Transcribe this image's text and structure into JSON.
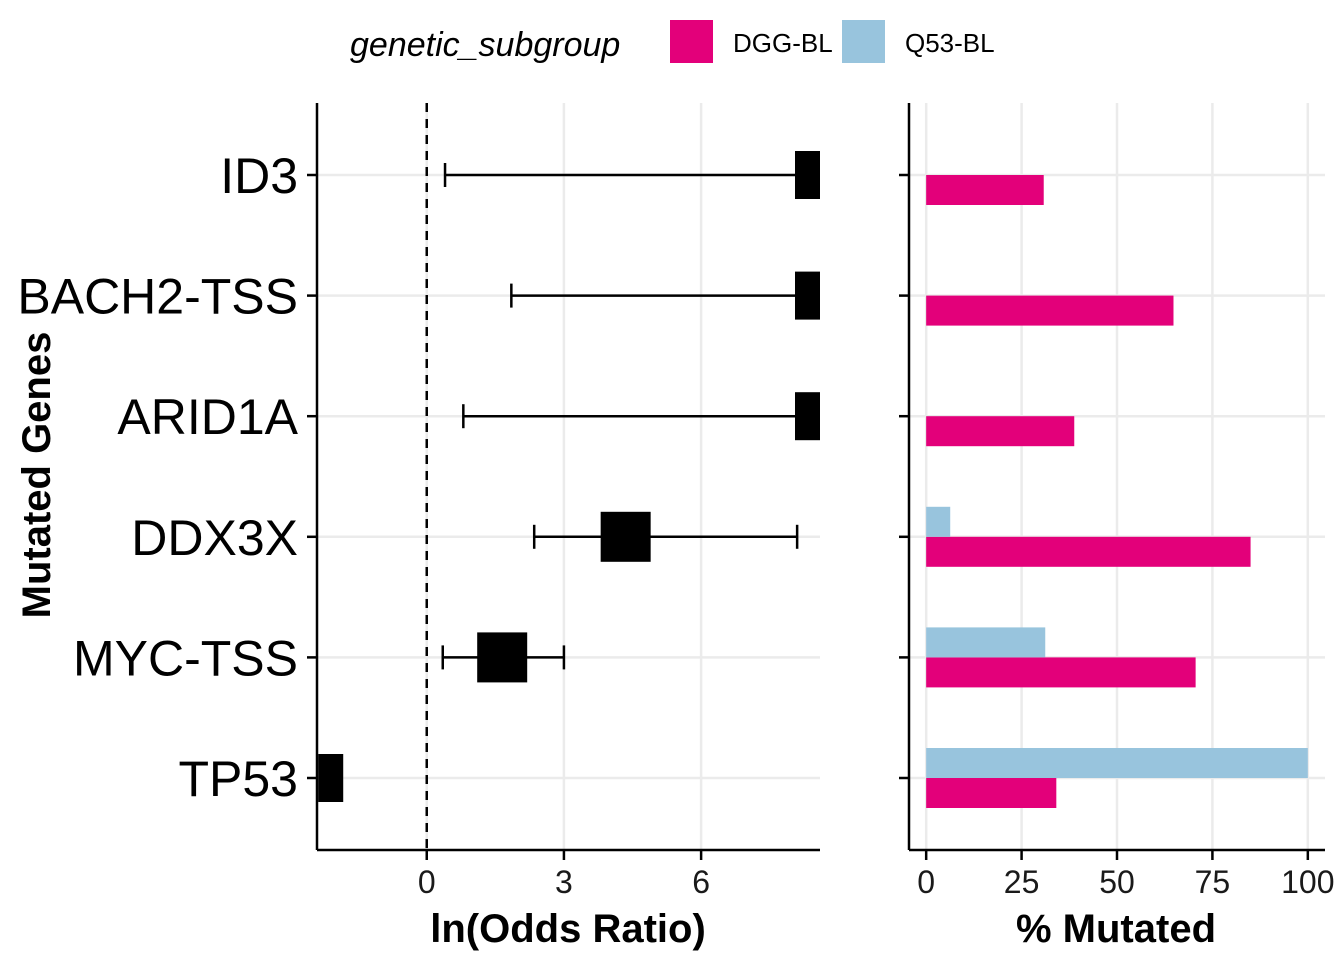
{
  "chart_data": {
    "legend": {
      "title": "genetic_subgroup",
      "entries": [
        {
          "name": "DGG-BL",
          "color": "#e3007a"
        },
        {
          "name": "Q53-BL",
          "color": "#98c4dd"
        }
      ]
    },
    "y_axis": {
      "label": "Mutated Genes",
      "categories": [
        "ID3",
        "BACH2-TSS",
        "ARID1A",
        "DDX3X",
        "MYC-TSS",
        "TP53"
      ]
    },
    "forest": {
      "type": "forest",
      "xlabel": "ln(Odds Ratio)",
      "xlim": [
        -2.4,
        8.6
      ],
      "ticks": [
        0,
        3,
        6
      ],
      "tick_labels": [
        "0",
        "3",
        "6"
      ],
      "reference_line": 0,
      "rows": [
        {
          "gene": "ID3",
          "estimate": 8.5,
          "lower": 0.4,
          "upper": 8.5,
          "box": "small"
        },
        {
          "gene": "BACH2-TSS",
          "estimate": 8.5,
          "lower": 1.85,
          "upper": 8.5,
          "box": "small"
        },
        {
          "gene": "ARID1A",
          "estimate": 8.5,
          "lower": 0.8,
          "upper": 8.5,
          "box": "small"
        },
        {
          "gene": "DDX3X",
          "estimate": 4.35,
          "lower": 2.35,
          "upper": 8.1,
          "box": "large"
        },
        {
          "gene": "MYC-TSS",
          "estimate": 1.65,
          "lower": 0.35,
          "upper": 3.0,
          "box": "large"
        },
        {
          "gene": "TP53",
          "estimate": -2.1,
          "lower": null,
          "upper": null,
          "box": "small"
        }
      ]
    },
    "bars": {
      "type": "bar",
      "xlabel": "% Mutated",
      "xlim": [
        -4.5,
        104.5
      ],
      "ticks": [
        0,
        25,
        50,
        75,
        100
      ],
      "tick_labels": [
        "0",
        "25",
        "50",
        "75",
        "100"
      ],
      "series": [
        {
          "name": "DGG-BL",
          "values": [
            30.8,
            64.8,
            38.8,
            85.0,
            70.6,
            34.1
          ]
        },
        {
          "name": "Q53-BL",
          "values": [
            0,
            0,
            0,
            6.3,
            31.2,
            100
          ]
        }
      ]
    }
  }
}
